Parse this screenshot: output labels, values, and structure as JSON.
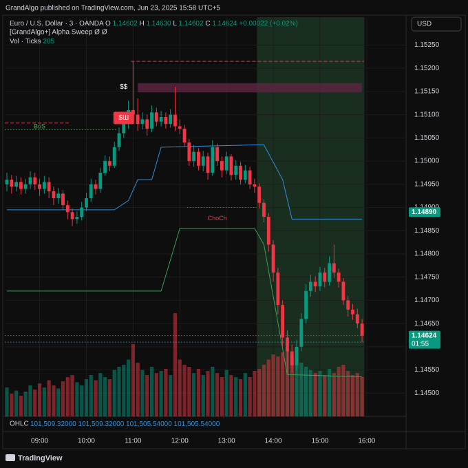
{
  "header": {
    "published": "GrandAlgo published on TradingView.com, Jun 23, 2025 15:58 UTC+5",
    "currency": "USD",
    "brand": "TradingView"
  },
  "legend": {
    "symbol": "Euro / U.S. Dollar · 3 · OANDA",
    "ohlc": [
      {
        "k": "O",
        "v": "1.14602"
      },
      {
        "k": "H",
        "v": "1.14630"
      },
      {
        "k": "L",
        "v": "1.14602"
      },
      {
        "k": "C",
        "v": "1.14624"
      }
    ],
    "change": "+0.00022 (+0.02%)",
    "indicator": "[GrandAlgo+] Alpha Sweep  Ø  Ø",
    "volume_name": "Vol · Ticks",
    "volume_value": "205"
  },
  "ohlc_row": {
    "label": "OHLC",
    "values": [
      "101,509.32000",
      "101,509.32000",
      "101,505.54000",
      "101,505.54000"
    ]
  },
  "chart_data": {
    "type": "candlestick",
    "up_color": "#089981",
    "down_color": "#f23645",
    "grid": true,
    "categories": [
      "08:18",
      "08:24",
      "08:30",
      "08:36",
      "08:42",
      "08:48",
      "08:54",
      "09:00",
      "09:06",
      "09:12",
      "09:18",
      "09:24",
      "09:30",
      "09:36",
      "09:42",
      "09:48",
      "09:54",
      "10:00",
      "10:06",
      "10:12",
      "10:18",
      "10:24",
      "10:30",
      "10:36",
      "10:42",
      "10:48",
      "10:54",
      "11:00",
      "11:06",
      "11:12",
      "11:18",
      "11:24",
      "11:30",
      "11:36",
      "11:42",
      "11:48",
      "11:54",
      "12:00",
      "12:06",
      "12:12",
      "12:18",
      "12:24",
      "12:30",
      "12:36",
      "12:42",
      "12:48",
      "12:54",
      "13:00",
      "13:06",
      "13:12",
      "13:18",
      "13:24",
      "13:30",
      "13:36",
      "13:42",
      "13:48",
      "13:54",
      "14:00",
      "14:06",
      "14:12",
      "14:18",
      "14:24",
      "14:30",
      "14:36",
      "14:42",
      "14:48",
      "14:54",
      "15:00",
      "15:06",
      "15:12",
      "15:18",
      "15:24",
      "15:30",
      "15:36",
      "15:42",
      "15:48",
      "15:54"
    ],
    "open": [
      1.1495,
      1.1496,
      1.14945,
      1.14955,
      1.1494,
      1.1495,
      1.14965,
      1.1495,
      1.1494,
      1.14955,
      1.14935,
      1.1492,
      1.1493,
      1.14905,
      1.1489,
      1.14875,
      1.1488,
      1.149,
      1.1492,
      1.1495,
      1.1494,
      1.14975,
      1.15,
      1.1499,
      1.1503,
      1.1506,
      1.1508,
      1.1511,
      1.151,
      1.1508,
      1.1509,
      1.1507,
      1.15105,
      1.15085,
      1.15095,
      1.1508,
      1.151,
      1.15075,
      1.1507,
      1.1504,
      1.15,
      1.1502,
      1.1499,
      1.1501,
      1.14975,
      1.1503,
      1.15,
      1.1498,
      1.1501,
      1.1497,
      1.1499,
      1.1496,
      1.1498,
      1.1495,
      1.14945,
      1.1491,
      1.1488,
      1.1482,
      1.1476,
      1.1469,
      1.1462,
      1.1459,
      1.1456,
      1.146,
      1.1466,
      1.1472,
      1.1474,
      1.1473,
      1.1476,
      1.1474,
      1.1478,
      1.1476,
      1.1474,
      1.147,
      1.1468,
      1.1467,
      1.1465
    ],
    "high": [
      1.14975,
      1.1497,
      1.14968,
      1.14965,
      1.14962,
      1.14978,
      1.14975,
      1.14962,
      1.14968,
      1.14965,
      1.14945,
      1.14942,
      1.14938,
      1.14915,
      1.14898,
      1.14892,
      1.14912,
      1.14932,
      1.14962,
      1.1496,
      1.14985,
      1.15012,
      1.1501,
      1.15042,
      1.15072,
      1.15092,
      1.1513,
      1.15215,
      1.15135,
      1.15105,
      1.151,
      1.1512,
      1.15115,
      1.15108,
      1.15105,
      1.15112,
      1.1516,
      1.1509,
      1.15078,
      1.15048,
      1.15035,
      1.15028,
      1.15022,
      1.15018,
      1.15045,
      1.15038,
      1.1501,
      1.1502,
      1.15015,
      1.15002,
      1.14998,
      1.14992,
      1.14988,
      1.14962,
      1.14952,
      1.14918,
      1.14888,
      1.1483,
      1.1477,
      1.147,
      1.14635,
      1.14605,
      1.14615,
      1.14672,
      1.14735,
      1.14755,
      1.14752,
      1.14772,
      1.1477,
      1.14795,
      1.1482,
      1.14768,
      1.14748,
      1.1471,
      1.14692,
      1.14682,
      1.1466
    ],
    "low": [
      1.14935,
      1.1493,
      1.14935,
      1.14928,
      1.1493,
      1.1494,
      1.14938,
      1.14925,
      1.1493,
      1.1492,
      1.14905,
      1.14908,
      1.14895,
      1.14875,
      1.1486,
      1.14865,
      1.14872,
      1.14892,
      1.14912,
      1.14928,
      1.14932,
      1.14968,
      1.14978,
      1.14985,
      1.15022,
      1.1505,
      1.1507,
      1.1509,
      1.15065,
      1.15068,
      1.15055,
      1.15062,
      1.15075,
      1.15075,
      1.1507,
      1.15072,
      1.15065,
      1.15058,
      1.1503,
      1.1499,
      1.14988,
      1.1498,
      1.14978,
      1.1496,
      1.14968,
      1.1499,
      1.14965,
      1.14972,
      1.14958,
      1.1496,
      1.1495,
      1.14952,
      1.1494,
      1.14932,
      1.14898,
      1.14868,
      1.14805,
      1.1474,
      1.1467,
      1.146,
      1.14545,
      1.14545,
      1.14548,
      1.1459,
      1.1465,
      1.14708,
      1.14718,
      1.1472,
      1.14728,
      1.14732,
      1.14748,
      1.14728,
      1.1469,
      1.14665,
      1.14658,
      1.1464,
      1.1461
    ],
    "close": [
      1.1496,
      1.14945,
      1.14955,
      1.1494,
      1.1495,
      1.14965,
      1.1495,
      1.1494,
      1.14955,
      1.14935,
      1.1492,
      1.1493,
      1.14905,
      1.1489,
      1.14875,
      1.1488,
      1.149,
      1.1492,
      1.1495,
      1.1494,
      1.14975,
      1.15,
      1.1499,
      1.1503,
      1.1506,
      1.1508,
      1.1511,
      1.151,
      1.1508,
      1.1509,
      1.1507,
      1.15105,
      1.15085,
      1.15095,
      1.1508,
      1.151,
      1.15075,
      1.1507,
      1.1504,
      1.15,
      1.1502,
      1.1499,
      1.1501,
      1.14975,
      1.1503,
      1.15,
      1.1498,
      1.1501,
      1.1497,
      1.1499,
      1.1496,
      1.1498,
      1.1495,
      1.14945,
      1.1491,
      1.1488,
      1.1482,
      1.1476,
      1.1469,
      1.1462,
      1.1459,
      1.1456,
      1.146,
      1.1466,
      1.1472,
      1.1474,
      1.1473,
      1.1476,
      1.1474,
      1.1478,
      1.1476,
      1.1474,
      1.147,
      1.1468,
      1.1467,
      1.1465,
      1.14624
    ],
    "volume": {
      "ylim": [
        0,
        100
      ],
      "values": [
        28,
        22,
        25,
        20,
        24,
        30,
        26,
        32,
        28,
        35,
        30,
        27,
        34,
        38,
        40,
        33,
        30,
        36,
        40,
        35,
        42,
        38,
        36,
        45,
        48,
        50,
        55,
        70,
        52,
        45,
        40,
        48,
        42,
        44,
        46,
        40,
        100,
        55,
        50,
        48,
        42,
        46,
        40,
        44,
        48,
        42,
        38,
        45,
        40,
        38,
        36,
        42,
        38,
        44,
        46,
        50,
        55,
        60,
        58,
        62,
        65,
        60,
        56,
        52,
        48,
        45,
        42,
        44,
        40,
        46,
        42,
        48,
        50,
        44,
        40,
        42,
        38
      ]
    },
    "ylim": [
      1.1445,
      1.1531
    ],
    "yticks": [
      {
        "value": 1.1525,
        "label": "1.15250"
      },
      {
        "value": 1.152,
        "label": "1.15200"
      },
      {
        "value": 1.1515,
        "label": "1.15150"
      },
      {
        "value": 1.151,
        "label": "1.15100"
      },
      {
        "value": 1.1505,
        "label": "1.15050"
      },
      {
        "value": 1.15,
        "label": "1.15000"
      },
      {
        "value": 1.1495,
        "label": "1.14950"
      },
      {
        "value": 1.149,
        "label": "1.14900"
      },
      {
        "value": 1.1485,
        "label": "1.14850"
      },
      {
        "value": 1.148,
        "label": "1.14800"
      },
      {
        "value": 1.1475,
        "label": "1.14750"
      },
      {
        "value": 1.147,
        "label": "1.14700"
      },
      {
        "value": 1.1465,
        "label": "1.14650"
      },
      {
        "value": 1.146,
        "label": "1.14600"
      },
      {
        "value": 1.1455,
        "label": "1.14550"
      },
      {
        "value": 1.145,
        "label": "1.14500"
      }
    ],
    "xticks": [
      "09:00",
      "10:00",
      "11:00",
      "12:00",
      "13:00",
      "14:00",
      "15:00",
      "16:00"
    ],
    "session": {
      "x": [
        "13:42",
        "15:54"
      ],
      "color": "#1a2e1f"
    },
    "zone": {
      "x": [
        "11:06",
        "15:54"
      ],
      "ylim": [
        1.15148,
        1.15168
      ],
      "color": "#5a2540"
    },
    "lines": [
      {
        "color": "#2f8fd8",
        "x": [
          "08:18",
          "10:36",
          "10:54",
          "11:06",
          "11:24",
          "11:36",
          "13:36",
          "13:48",
          "14:12",
          "14:24",
          "15:54"
        ],
        "values": [
          1.14895,
          1.14895,
          1.14915,
          1.1496,
          1.1496,
          1.1503,
          1.15035,
          1.15035,
          1.1496,
          1.14875,
          1.14875
        ]
      },
      {
        "color": "#3c9e5a",
        "x": [
          "08:18",
          "11:36",
          "12:00",
          "13:36",
          "13:48",
          "14:18",
          "15:54"
        ],
        "values": [
          1.1472,
          1.1472,
          1.14855,
          1.14855,
          1.1482,
          1.1454,
          1.14535
        ]
      }
    ],
    "levels": [
      {
        "y": 1.15215,
        "x": [
          "11:00",
          "15:54"
        ],
        "color": "#f23645",
        "style": "dashed"
      },
      {
        "y": 1.15082,
        "x": [
          "08:18",
          "09:36"
        ],
        "color": "#f23645",
        "style": "dashed"
      },
      {
        "y": 1.15068,
        "x": [
          "08:18",
          "10:36"
        ],
        "color": "#4caf50",
        "style": "dotted",
        "label": "BoS",
        "label_x": "09:00"
      },
      {
        "y": 1.149,
        "x": [
          "12:12",
          "13:36"
        ],
        "color": "#f23645",
        "style": "dotted",
        "label": "ChoCh",
        "label_x": "12:48"
      },
      {
        "y": 1.14624,
        "x": [
          "08:18",
          "15:54"
        ],
        "color": "#f23645",
        "style": "dotted"
      },
      {
        "y": 1.1461,
        "x": [
          "08:18",
          "15:54"
        ],
        "color": "#2f8fd8",
        "style": "dotted"
      }
    ],
    "markers": [
      {
        "text": "$$",
        "x": "10:48",
        "y": 1.1516
      },
      {
        "text": "$Ш",
        "x": "10:48",
        "y": 1.15093,
        "box": "#f23645"
      }
    ],
    "price_tags": [
      {
        "value": 1.1489,
        "label": "1.14890",
        "color": "#089981"
      },
      {
        "value": 1.14624,
        "label": "1.14624",
        "sub": "01:55",
        "color": "#089981"
      }
    ]
  }
}
